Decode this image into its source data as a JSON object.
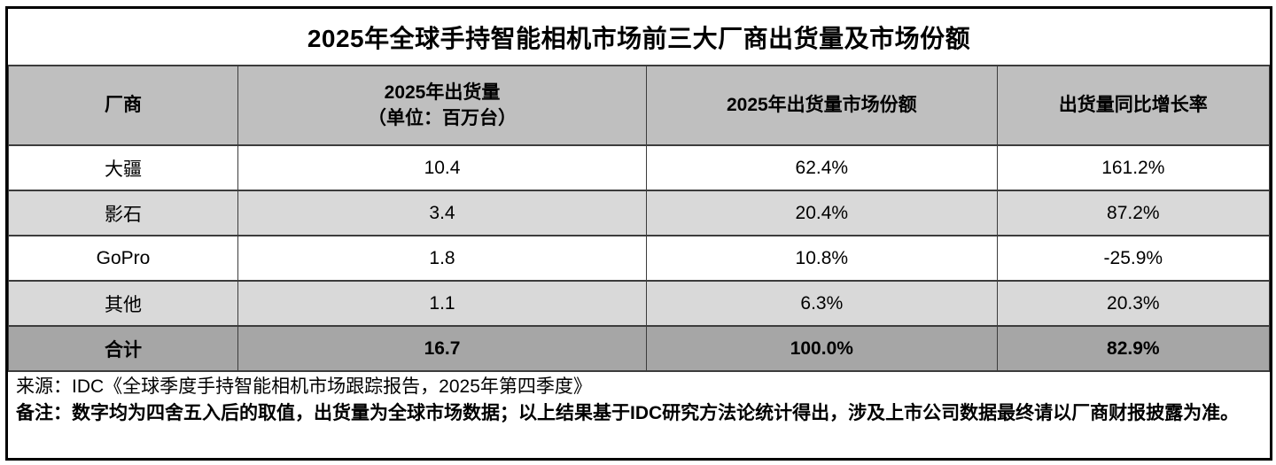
{
  "colors": {
    "header_bg": "#bfbfbf",
    "stripe_bg": "#d9d9d9",
    "total_bg": "#a6a6a6",
    "grid_line": "#3c3c3c",
    "frame_border": "#000000",
    "text": "#000000"
  },
  "chart_data": {
    "type": "table",
    "title": "2025年全球手持智能相机市场前三大厂商出货量及市场份额",
    "columns": [
      "厂商",
      "2025年出货量（单位：百万台）",
      "2025年出货量市场份额",
      "出货量同比增长率"
    ],
    "header": {
      "vendor": "厂商",
      "shipments_line1": "2025年出货量",
      "shipments_line2": "（单位：百万台）",
      "share": "2025年出货量市场份额",
      "growth": "出货量同比增长率"
    },
    "rows": [
      {
        "vendor": "大疆",
        "shipments": "10.4",
        "share": "62.4%",
        "growth": "161.2%"
      },
      {
        "vendor": "影石",
        "shipments": "3.4",
        "share": "20.4%",
        "growth": "87.2%"
      },
      {
        "vendor": "GoPro",
        "shipments": "1.8",
        "share": "10.8%",
        "growth": "-25.9%"
      },
      {
        "vendor": "其他",
        "shipments": "1.1",
        "share": "6.3%",
        "growth": "20.3%"
      }
    ],
    "total": {
      "vendor": "合计",
      "shipments": "16.7",
      "share": "100.0%",
      "growth": "82.9%"
    }
  },
  "footer": {
    "source": "来源：IDC《全球季度手持智能相机市场跟踪报告，2025年第四季度》",
    "note": "备注：数字均为四舍五入后的取值，出货量为全球市场数据；以上结果基于IDC研究方法论统计得出，涉及上市公司数据最终请以厂商财报披露为准。"
  }
}
